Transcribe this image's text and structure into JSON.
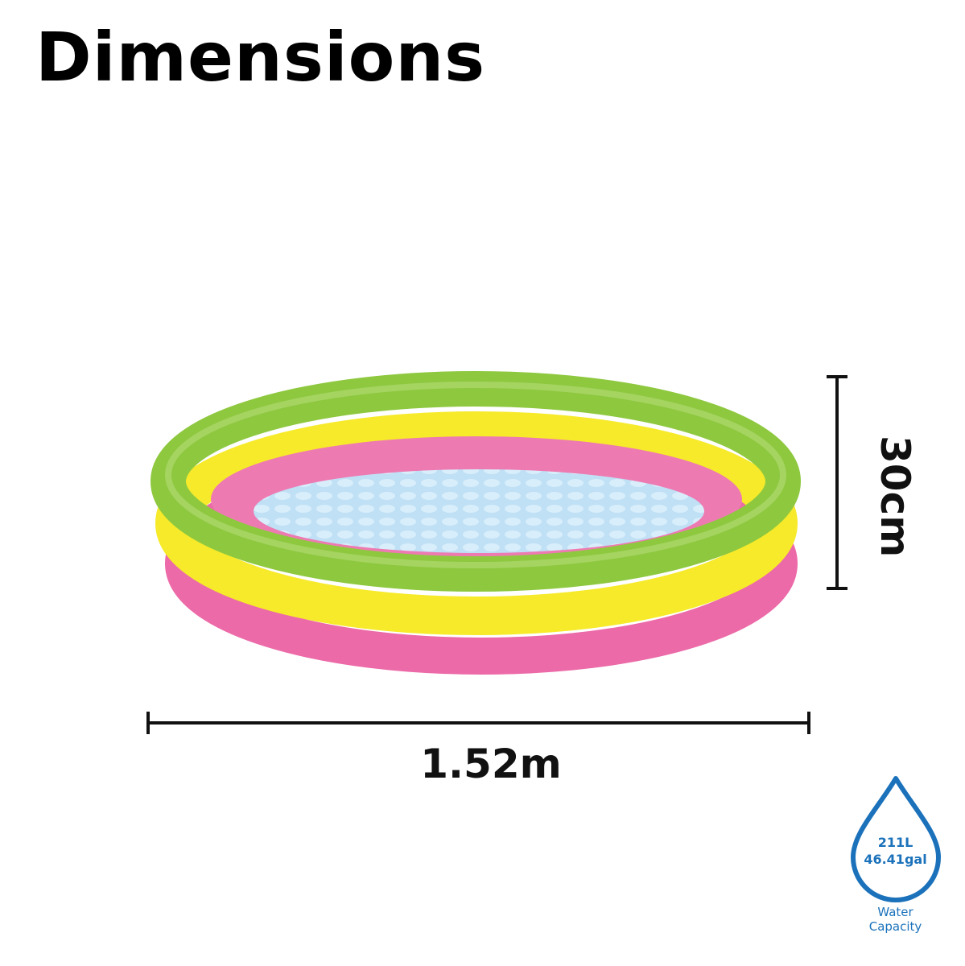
{
  "title": "Dimensions",
  "dimensions": {
    "width": "1.52m",
    "height": "30cm"
  },
  "capacity": {
    "liters": "211L",
    "gallons": "46.41gal",
    "label_line1": "Water",
    "label_line2": "Capacity",
    "icon": "water-drop-icon"
  },
  "colors": {
    "accent": "#1b72bb",
    "green": "#8cc63f",
    "yellow": "#f5e61e",
    "pink": "#e85aa0",
    "water": "#bfe0f5"
  }
}
